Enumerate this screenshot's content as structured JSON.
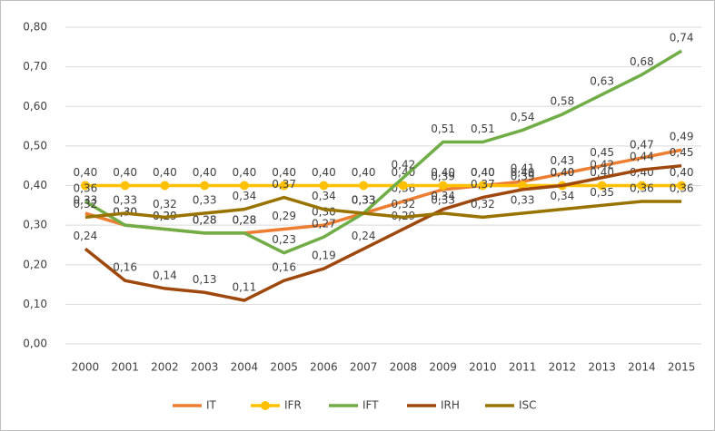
{
  "chart_data": {
    "type": "line",
    "categories": [
      2000,
      2001,
      2002,
      2003,
      2004,
      2005,
      2006,
      2007,
      2008,
      2009,
      2010,
      2011,
      2012,
      2013,
      2014,
      2015
    ],
    "ylim": [
      0,
      0.8
    ],
    "yticks": [
      {
        "value": 0,
        "label": "0,00"
      },
      {
        "value": 0.1,
        "label": "0,10"
      },
      {
        "value": 0.2,
        "label": "0,20"
      },
      {
        "value": 0.3,
        "label": "0,30"
      },
      {
        "value": 0.4,
        "label": "0,40"
      },
      {
        "value": 0.5,
        "label": "0,50"
      },
      {
        "value": 0.6,
        "label": "0,60"
      },
      {
        "value": 0.7,
        "label": "0,70"
      },
      {
        "value": 0.8,
        "label": "0,80"
      }
    ],
    "grid": true,
    "legend": "bottom",
    "series": [
      {
        "name": "IT",
        "color": "#ed7d31",
        "marker": false,
        "values": [
          0.33,
          0.3,
          0.29,
          0.28,
          0.28,
          0.29,
          0.3,
          0.33,
          0.36,
          0.39,
          0.4,
          0.41,
          0.43,
          0.45,
          0.47,
          0.49
        ],
        "value_labels": [
          "0,33",
          "0,30",
          "0,29",
          "0,28",
          "0,28",
          "0,29",
          "0,30",
          "0,33",
          "0,36",
          "0,39",
          "0,40",
          "0,41",
          "0,43",
          "0,45",
          "0,47",
          "0,49"
        ]
      },
      {
        "name": "IFR",
        "color": "#ffc000",
        "marker": true,
        "values": [
          0.4,
          0.4,
          0.4,
          0.4,
          0.4,
          0.4,
          0.4,
          0.4,
          0.4,
          0.4,
          0.4,
          0.4,
          0.4,
          0.4,
          0.4,
          0.4
        ],
        "value_labels": [
          "0,40",
          "0,40",
          "0,40",
          "0,40",
          "0,40",
          "0,40",
          "0,40",
          "0,40",
          "0,40",
          "0,40",
          "0,40",
          "0,40",
          "0,40",
          "0,40",
          "0,40",
          "0,40"
        ]
      },
      {
        "name": "IFT",
        "color": "#70ad47",
        "marker": false,
        "values": [
          0.36,
          0.3,
          0.29,
          0.28,
          0.28,
          0.23,
          0.27,
          0.33,
          0.42,
          0.51,
          0.51,
          0.54,
          0.58,
          0.63,
          0.68,
          0.74
        ],
        "value_labels": [
          "0,36",
          "0,30",
          "0,29",
          "0,28",
          "0,28",
          "0,23",
          "0,27",
          "0,33",
          "0,42",
          "0,51",
          "0,51",
          "0,54",
          "0,58",
          "0,63",
          "0,68",
          "0,74"
        ]
      },
      {
        "name": "IRH",
        "color": "#9e480e",
        "marker": false,
        "values": [
          0.24,
          0.16,
          0.14,
          0.13,
          0.11,
          0.16,
          0.19,
          0.24,
          0.29,
          0.34,
          0.37,
          0.39,
          0.4,
          0.42,
          0.44,
          0.45
        ],
        "value_labels": [
          "0,24",
          "0,16",
          "0,14",
          "0,13",
          "0,11",
          "0,16",
          "0,19",
          "0,24",
          "0,29",
          "0,34",
          "0,37",
          "0,39",
          "0,40",
          "0,42",
          "0,44",
          "0,45"
        ]
      },
      {
        "name": "ISC",
        "color": "#997300",
        "marker": false,
        "values": [
          0.32,
          0.33,
          0.32,
          0.33,
          0.34,
          0.37,
          0.34,
          0.33,
          0.32,
          0.33,
          0.32,
          0.33,
          0.34,
          0.35,
          0.36,
          0.36
        ],
        "value_labels": [
          "0,32",
          "0,33",
          "0,32",
          "0,33",
          "0,34",
          "0,37",
          "0,34",
          "0,33",
          "0,32",
          "0,33",
          "0,32",
          "0,33",
          "0,34",
          "0,35",
          "0,36",
          "0,36"
        ]
      }
    ]
  }
}
